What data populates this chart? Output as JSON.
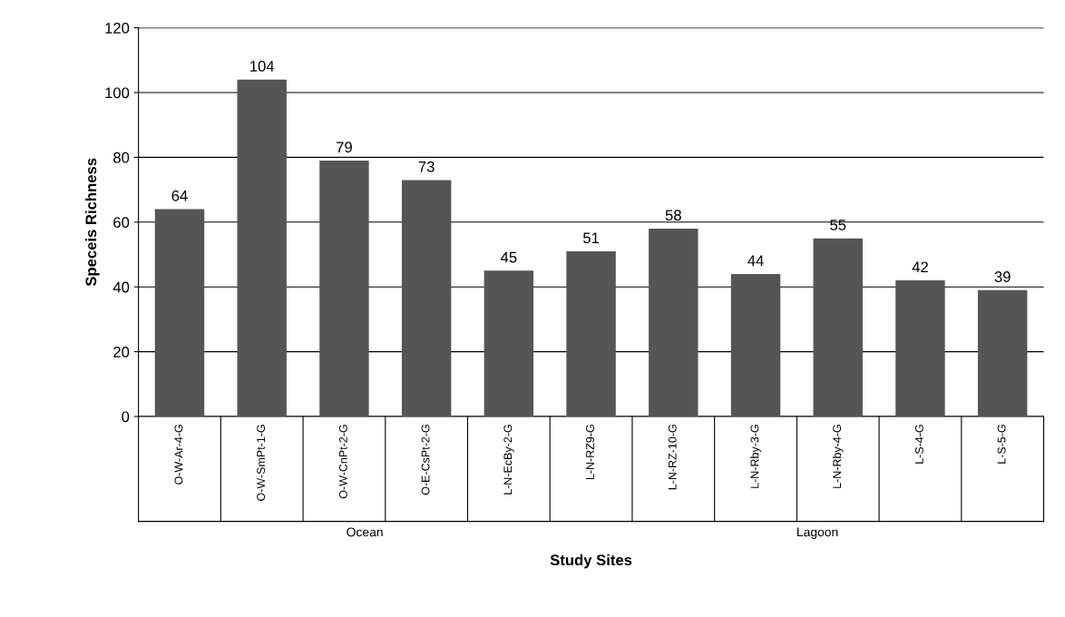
{
  "chart_data": {
    "type": "bar",
    "categories": [
      "O-W-Ar-4-G",
      "O-W-SmPt-1-G",
      "O-W-CnPt-2-G",
      "O-E-CsPt-2-G",
      "L-N-EcBy-2-G",
      "L-N-RZ9-G",
      "L-N-RZ-10-G",
      "L-N-Rby-3-G",
      "L-N-Rby-4-G",
      "L-S-4-G",
      "L-S-5-G"
    ],
    "values": [
      64,
      104,
      79,
      73,
      45,
      51,
      58,
      44,
      55,
      42,
      39
    ],
    "color": "#555555",
    "xlabel": "Study Sites",
    "ylabel": "Speceis Richness",
    "ylim": [
      0,
      120
    ],
    "yticks": [
      0,
      20,
      40,
      60,
      80,
      100,
      120
    ],
    "grid": "y",
    "data_labels": true,
    "annotations": [
      "Ocean",
      "Lagoon"
    ]
  }
}
